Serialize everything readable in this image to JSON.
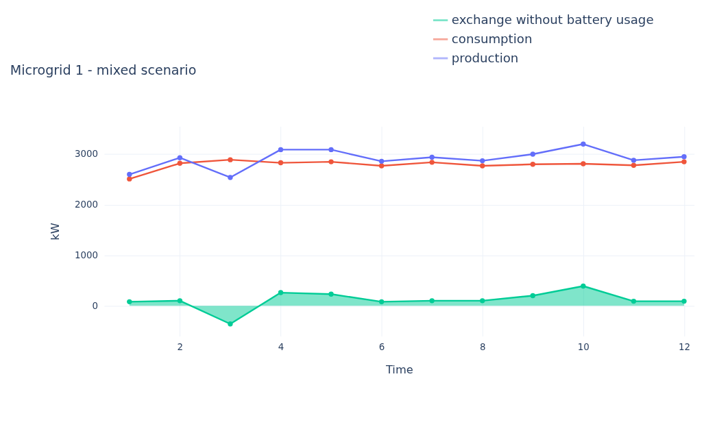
{
  "chart_data": {
    "type": "line",
    "title": "Microgrid 1 - mixed scenario",
    "xlabel": "Time",
    "ylabel": "kW",
    "x": [
      1,
      2,
      3,
      4,
      5,
      6,
      7,
      8,
      9,
      10,
      11,
      12
    ],
    "series": [
      {
        "name": "exchange without battery usage",
        "type": "area",
        "color": "#00cc96",
        "values": [
          80,
          100,
          -360,
          260,
          230,
          80,
          100,
          100,
          200,
          390,
          90,
          90
        ]
      },
      {
        "name": "consumption",
        "color": "#ef553b",
        "values": [
          2510,
          2820,
          2890,
          2830,
          2850,
          2770,
          2840,
          2770,
          2800,
          2810,
          2780,
          2850
        ]
      },
      {
        "name": "production",
        "color": "#636efa",
        "values": [
          2600,
          2930,
          2540,
          3090,
          3090,
          2860,
          2940,
          2870,
          3000,
          3200,
          2880,
          2950
        ]
      }
    ],
    "xlim": [
      0.5,
      12.2
    ],
    "xticks": [
      2,
      4,
      6,
      8,
      10,
      12
    ],
    "ylim": [
      -600,
      3550
    ],
    "yticks": [
      0,
      1000,
      2000,
      3000
    ],
    "grid": true,
    "legend": "top right",
    "marker": "circle",
    "line_style": "solid"
  }
}
